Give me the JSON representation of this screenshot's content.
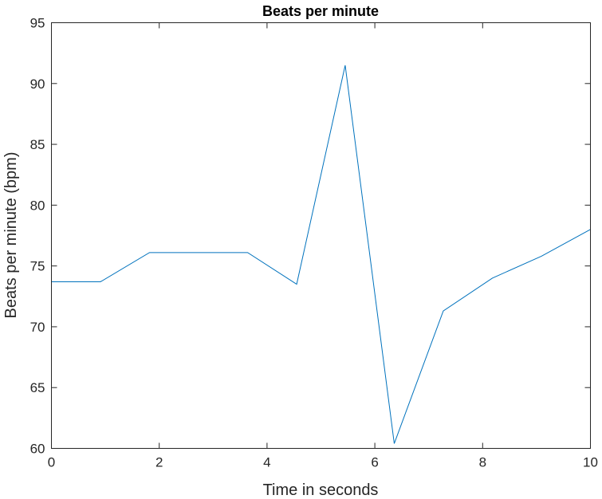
{
  "chart_data": {
    "type": "line",
    "title": "Beats per minute",
    "xlabel": "Time in seconds",
    "ylabel": "Beats per minute (bpm)",
    "xlim": [
      0,
      10
    ],
    "ylim": [
      60,
      95
    ],
    "xticks": [
      0,
      2,
      4,
      6,
      8,
      10
    ],
    "yticks": [
      60,
      65,
      70,
      75,
      80,
      85,
      90,
      95
    ],
    "grid": false,
    "series": [
      {
        "color": "#0072BD",
        "x": [
          0,
          0.91,
          1.82,
          2.73,
          3.64,
          4.55,
          5.45,
          6.36,
          7.27,
          8.18,
          9.09,
          10
        ],
        "y": [
          73.7,
          73.7,
          76.1,
          76.1,
          76.1,
          73.5,
          91.5,
          60.4,
          71.3,
          74.0,
          75.8,
          78.0
        ]
      }
    ]
  }
}
